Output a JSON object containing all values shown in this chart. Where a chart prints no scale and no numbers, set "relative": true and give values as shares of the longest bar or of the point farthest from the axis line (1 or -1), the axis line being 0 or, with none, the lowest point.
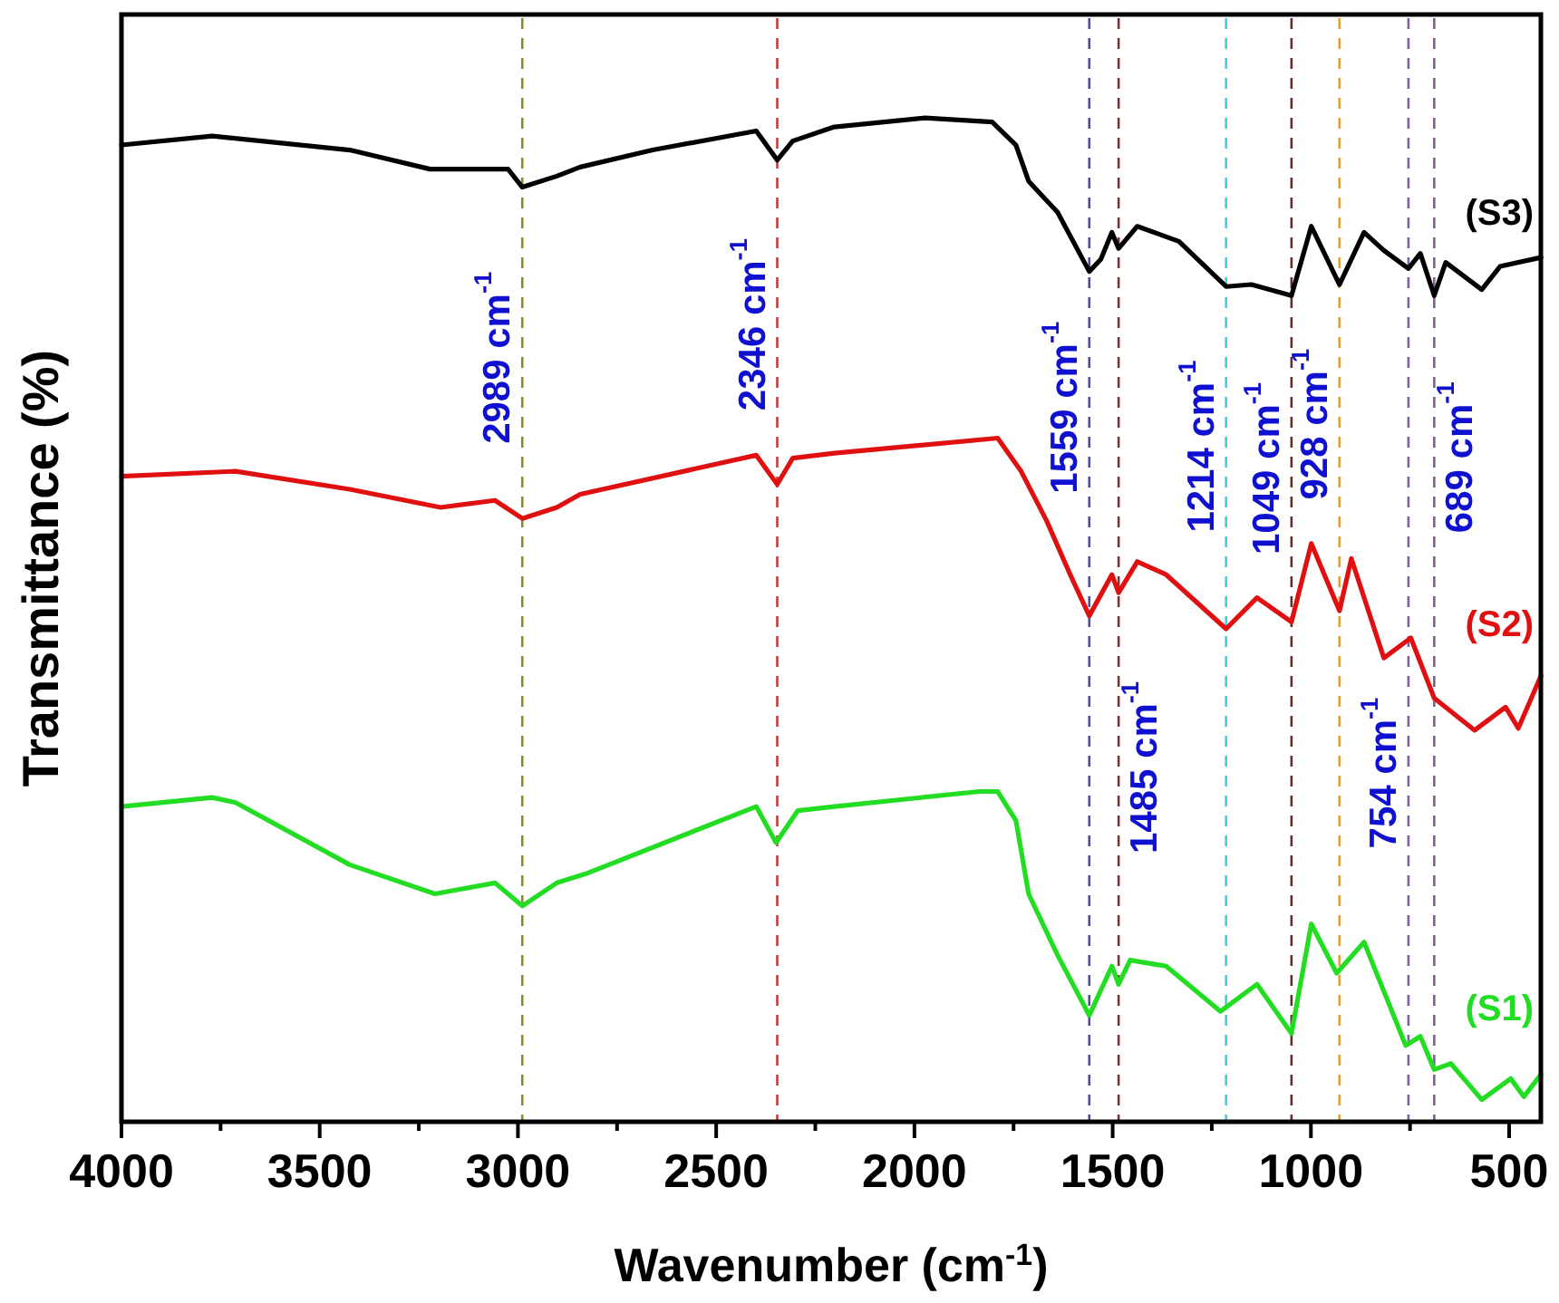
{
  "chart_data": {
    "type": "line",
    "relative": true,
    "xlabel": "Wavenumber (cm$^{-1}$)",
    "ylabel": "Transmittance (%)",
    "xlim": [
      4000,
      420
    ],
    "xticks": [
      4000,
      {
        "value": 3750,
        "label": null
      },
      3500,
      {
        "value": 3250,
        "label": null
      },
      3000,
      {
        "value": 2750,
        "label": null
      },
      2500,
      {
        "value": 2250,
        "label": null
      },
      2000,
      {
        "value": 1750,
        "label": null
      },
      1500,
      {
        "value": 1250,
        "label": null
      },
      1000,
      {
        "value": 750,
        "label": null
      },
      500
    ],
    "tick_labels": "x",
    "grid": false,
    "marker": "none",
    "line_style": "solid",
    "series": [
      {
        "name": "(S3)",
        "color": "#000000",
        "x": [
          4000,
          3771,
          3424,
          3222,
          3117,
          3025,
          2989,
          2902,
          2843,
          2660,
          2399,
          2346,
          2307,
          2202,
          1973,
          1804,
          1744,
          1712,
          1639,
          1559,
          1530,
          1502,
          1485,
          1438,
          1333,
          1214,
          1150,
          1049,
          999,
          928,
          866,
          816,
          754,
          724,
          689,
          660,
          569,
          523,
          420
        ],
        "values": [
          0.973,
          0.982,
          0.968,
          0.949,
          0.949,
          0.949,
          0.931,
          0.942,
          0.951,
          0.968,
          0.987,
          0.958,
          0.977,
          0.991,
          1.0,
          0.996,
          0.973,
          0.937,
          0.906,
          0.847,
          0.859,
          0.886,
          0.87,
          0.892,
          0.877,
          0.832,
          0.834,
          0.823,
          0.892,
          0.834,
          0.886,
          0.868,
          0.85,
          0.865,
          0.823,
          0.856,
          0.829,
          0.852,
          0.861
        ]
      },
      {
        "name": "(S2)",
        "color": "#e01010",
        "x": [
          4000,
          3712,
          3424,
          3195,
          3058,
          2989,
          2902,
          2843,
          2399,
          2346,
          2307,
          2202,
          1790,
          1731,
          1667,
          1607,
          1559,
          1502,
          1485,
          1438,
          1365,
          1214,
          1136,
          1049,
          999,
          928,
          898,
          816,
          748,
          689,
          587,
          509,
          477,
          420
        ],
        "values": [
          0.643,
          0.648,
          0.63,
          0.612,
          0.619,
          0.601,
          0.612,
          0.625,
          0.664,
          0.635,
          0.661,
          0.666,
          0.681,
          0.648,
          0.599,
          0.545,
          0.504,
          0.545,
          0.527,
          0.558,
          0.545,
          0.491,
          0.522,
          0.498,
          0.576,
          0.509,
          0.561,
          0.462,
          0.482,
          0.422,
          0.39,
          0.413,
          0.392,
          0.444
        ]
      },
      {
        "name": "(S1)",
        "color": "#22dd22",
        "x": [
          4000,
          3771,
          3712,
          3424,
          3209,
          3058,
          2989,
          2902,
          2829,
          2399,
          2349,
          2294,
          2202,
          1836,
          1790,
          1744,
          1712,
          1639,
          1559,
          1502,
          1485,
          1456,
          1365,
          1228,
          1136,
          1049,
          999,
          935,
          866,
          761,
          724,
          689,
          647,
          569,
          496,
          463,
          420
        ],
        "values": [
          0.314,
          0.323,
          0.318,
          0.256,
          0.227,
          0.238,
          0.215,
          0.238,
          0.247,
          0.314,
          0.278,
          0.31,
          0.314,
          0.329,
          0.329,
          0.3,
          0.227,
          0.166,
          0.106,
          0.155,
          0.137,
          0.161,
          0.155,
          0.11,
          0.137,
          0.088,
          0.197,
          0.148,
          0.179,
          0.076,
          0.085,
          0.052,
          0.058,
          0.022,
          0.043,
          0.025,
          0.047
        ]
      }
    ],
    "ref_lines": [
      {
        "axis": "x",
        "value": 2989,
        "label": "2989 cm$^{-1}$",
        "color": "#8b8b2a",
        "line_style": "dashed"
      },
      {
        "axis": "x",
        "value": 2346,
        "label": "2346 cm$^{-1}$",
        "color": "#c04040",
        "line_style": "dashed"
      },
      {
        "axis": "x",
        "value": 1559,
        "label": "1559 cm$^{-1}$",
        "color": "#505090",
        "line_style": "dashed"
      },
      {
        "axis": "x",
        "value": 1485,
        "label": "1485 cm$^{-1}$",
        "color": "#803030",
        "line_style": "dashed"
      },
      {
        "axis": "x",
        "value": 1214,
        "label": "1214 cm$^{-1}$",
        "color": "#40d0e0",
        "line_style": "dashed"
      },
      {
        "axis": "x",
        "value": 1049,
        "label": "1049 cm$^{-1}$",
        "color": "#603030",
        "line_style": "dashed"
      },
      {
        "axis": "x",
        "value": 928,
        "label": "928 cm$^{-1}$",
        "color": "#e0a040",
        "line_style": "dashed"
      },
      {
        "axis": "x",
        "value": 754,
        "label": "754 cm$^{-1}$",
        "color": "#8060a0",
        "line_style": "dashed"
      },
      {
        "axis": "x",
        "value": 689,
        "label": "689 cm$^{-1}$",
        "color": "#806090",
        "line_style": "dashed"
      }
    ]
  }
}
